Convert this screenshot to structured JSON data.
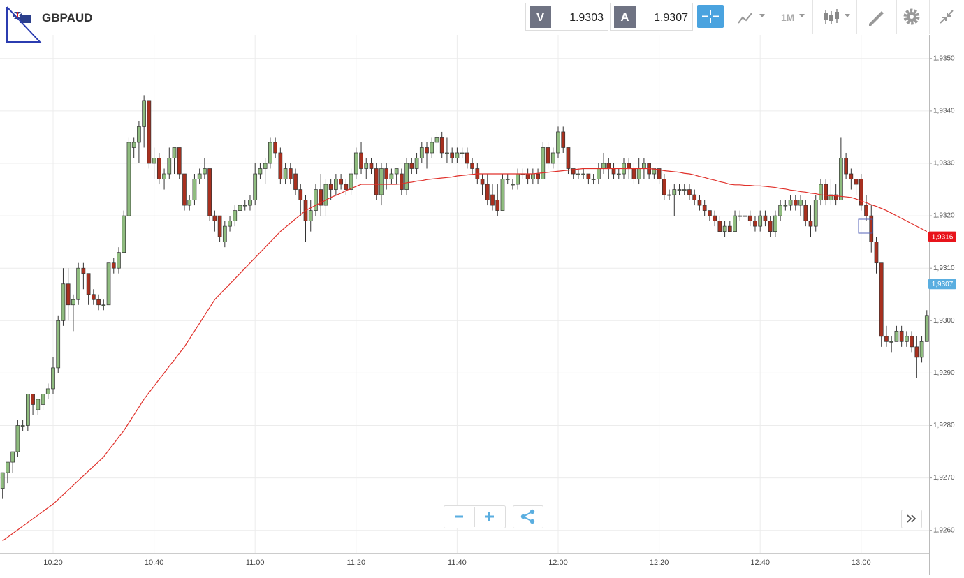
{
  "header": {
    "pair": "GBPAUD",
    "bid_label": "V",
    "bid": "1.9303",
    "ask_label": "A",
    "ask": "1.9307",
    "timeframe": "1M"
  },
  "chart_data": {
    "type": "candlestick",
    "categories": [
      null,
      null,
      null,
      null,
      null,
      null,
      null,
      null,
      null,
      null,
      "10:20",
      null,
      null,
      null,
      null,
      null,
      null,
      null,
      null,
      null,
      null,
      null,
      null,
      null,
      null,
      null,
      null,
      null,
      null,
      null,
      "10:40",
      null,
      null,
      null,
      null,
      null,
      null,
      null,
      null,
      null,
      null,
      null,
      null,
      null,
      null,
      null,
      null,
      null,
      null,
      null,
      "11:00",
      null,
      null,
      null,
      null,
      null,
      null,
      null,
      null,
      null,
      null,
      null,
      null,
      null,
      null,
      null,
      null,
      null,
      null,
      null,
      "11:20",
      null,
      null,
      null,
      null,
      null,
      null,
      null,
      null,
      null,
      null,
      null,
      null,
      null,
      null,
      null,
      null,
      null,
      null,
      null,
      "11:40",
      null,
      null,
      null,
      null,
      null,
      null,
      null,
      null,
      null,
      null,
      null,
      null,
      null,
      null,
      null,
      null,
      null,
      null,
      null,
      "12:00",
      null,
      null,
      null,
      null,
      null,
      null,
      null,
      null,
      null,
      null,
      null,
      null,
      null,
      null,
      null,
      null,
      null,
      null,
      null,
      "12:20",
      null,
      null,
      null,
      null,
      null,
      null,
      null,
      null,
      null,
      null,
      null,
      null,
      null,
      null,
      null,
      null,
      null,
      null,
      null,
      "12:40",
      null,
      null,
      null,
      null,
      null,
      null,
      null,
      null,
      null,
      null,
      null,
      null,
      null,
      null,
      null,
      null,
      null,
      null,
      null,
      "13:00",
      null,
      null,
      null,
      null,
      null,
      null,
      null,
      null,
      null,
      null,
      null,
      null,
      null
    ],
    "open": [
      1.9268,
      1.9271,
      1.9273,
      1.9275,
      1.928,
      1.928,
      1.9286,
      1.9283,
      1.9284,
      1.9286,
      1.9287,
      1.9291,
      1.93,
      1.9307,
      1.9303,
      1.9304,
      1.931,
      1.9309,
      1.9305,
      1.9304,
      1.9303,
      1.9303,
      1.9311,
      1.931,
      1.9313,
      1.932,
      1.9333,
      1.9334,
      1.9337,
      1.9342,
      1.933,
      1.9331,
      1.9327,
      1.9328,
      1.9331,
      1.9333,
      1.9328,
      1.9322,
      1.9323,
      1.9327,
      1.9328,
      1.9329,
      1.932,
      1.932,
      1.9315,
      1.9318,
      1.9319,
      1.9321,
      1.9322,
      1.9322,
      1.9323,
      1.9328,
      1.9329,
      1.933,
      1.9334,
      1.9332,
      1.9327,
      1.9329,
      1.9328,
      1.9325,
      1.9323,
      1.9319,
      1.9321,
      1.9325,
      1.9322,
      1.9326,
      1.9325,
      1.9327,
      1.9326,
      1.9325,
      1.9328,
      1.9332,
      1.9329,
      1.933,
      1.9329,
      1.9324,
      1.9329,
      1.9327,
      1.9328,
      1.9328,
      1.9325,
      1.933,
      1.9329,
      1.9331,
      1.9333,
      1.9332,
      1.9334,
      1.9335,
      1.9332,
      1.9332,
      1.9331,
      1.9332,
      1.9332,
      1.933,
      1.9329,
      1.9327,
      1.9326,
      1.9324,
      1.9323,
      1.9321,
      1.9327,
      1.9326,
      1.9326,
      1.9328,
      1.9328,
      1.9327,
      1.9328,
      1.9327,
      1.9333,
      1.933,
      1.9332,
      1.9336,
      1.9333,
      1.9329,
      1.9328,
      1.9328,
      1.9328,
      1.9327,
      1.9327,
      1.9329,
      1.933,
      1.9329,
      1.9328,
      1.9328,
      1.933,
      1.9329,
      1.9327,
      1.9329,
      1.933,
      1.9328,
      1.9329,
      1.9327,
      1.9324,
      1.9324,
      1.9325,
      1.9325,
      1.9325,
      1.9324,
      1.9323,
      1.9322,
      1.9321,
      1.932,
      1.9319,
      1.9317,
      1.9318,
      1.9317,
      1.932,
      1.932,
      1.932,
      1.9319,
      1.9318,
      1.932,
      1.9319,
      1.9317,
      1.932,
      1.9322,
      1.9322,
      1.9323,
      1.9322,
      1.9322,
      1.9319,
      1.9318,
      1.9323,
      1.9326,
      1.9323,
      1.9324,
      1.9323,
      1.9331,
      1.9328,
      1.9327,
      1.9327,
      1.9322,
      1.932,
      1.9315,
      1.9311,
      1.9297,
      1.9296,
      1.9296,
      1.9298,
      1.9296,
      1.9297,
      1.9295,
      1.9293,
      1.9296
    ],
    "high": [
      1.9271,
      1.9273,
      1.9275,
      1.9281,
      1.9281,
      1.9286,
      1.9286,
      1.9285,
      1.9286,
      1.9288,
      1.9293,
      1.9301,
      1.931,
      1.931,
      1.9305,
      1.9311,
      1.9311,
      1.9309,
      1.9306,
      1.9305,
      1.9304,
      1.9311,
      1.9312,
      1.9314,
      1.9321,
      1.9335,
      1.9335,
      1.9338,
      1.9343,
      1.9342,
      1.9333,
      1.9332,
      1.9329,
      1.9333,
      1.9333,
      1.9333,
      1.9328,
      1.9324,
      1.9328,
      1.9329,
      1.9331,
      1.9329,
      1.9321,
      1.932,
      1.9319,
      1.932,
      1.9322,
      1.9322,
      1.9323,
      1.9324,
      1.933,
      1.933,
      1.9331,
      1.9335,
      1.9335,
      1.9333,
      1.933,
      1.933,
      1.9329,
      1.9326,
      1.9324,
      1.9323,
      1.9326,
      1.9328,
      1.9327,
      1.9327,
      1.9328,
      1.9328,
      1.9327,
      1.9329,
      1.9333,
      1.9334,
      1.9331,
      1.9331,
      1.933,
      1.933,
      1.933,
      1.9329,
      1.9329,
      1.9329,
      1.9331,
      1.9331,
      1.9332,
      1.9334,
      1.9334,
      1.9335,
      1.9336,
      1.9336,
      1.9335,
      1.9333,
      1.9333,
      1.9333,
      1.9333,
      1.9331,
      1.933,
      1.9328,
      1.9328,
      1.9326,
      1.9326,
      1.9328,
      1.9328,
      1.9327,
      1.9329,
      1.9329,
      1.9329,
      1.9329,
      1.9329,
      1.9334,
      1.9334,
      1.9333,
      1.9337,
      1.9337,
      1.9333,
      1.9329,
      1.9329,
      1.9329,
      1.9328,
      1.9328,
      1.933,
      1.9332,
      1.9331,
      1.933,
      1.9329,
      1.9331,
      1.9331,
      1.933,
      1.9331,
      1.9331,
      1.933,
      1.9329,
      1.9329,
      1.9328,
      1.9325,
      1.9326,
      1.9326,
      1.9326,
      1.9326,
      1.9325,
      1.9324,
      1.9323,
      1.9321,
      1.9321,
      1.932,
      1.9319,
      1.9319,
      1.9321,
      1.9321,
      1.9321,
      1.9321,
      1.932,
      1.9321,
      1.9321,
      1.932,
      1.9321,
      1.9323,
      1.9323,
      1.9324,
      1.9324,
      1.9324,
      1.9323,
      1.9322,
      1.9324,
      1.9327,
      1.9327,
      1.9327,
      1.9326,
      1.9335,
      1.9332,
      1.9329,
      1.9327,
      1.9328,
      1.9324,
      1.9322,
      1.9316,
      1.9311,
      1.9299,
      1.9297,
      1.9299,
      1.9299,
      1.9298,
      1.9298,
      1.9297,
      1.9297,
      1.9302
    ],
    "low": [
      1.9266,
      1.9269,
      1.9271,
      1.9274,
      1.9279,
      1.9279,
      1.9282,
      1.9282,
      1.9283,
      1.9285,
      1.9286,
      1.929,
      1.9299,
      1.93,
      1.9298,
      1.9303,
      1.9306,
      1.9303,
      1.9303,
      1.9302,
      1.9302,
      1.9303,
      1.9309,
      1.9309,
      1.9313,
      1.932,
      1.9331,
      1.933,
      1.9333,
      1.9329,
      1.9327,
      1.9326,
      1.9325,
      1.9327,
      1.9328,
      1.9327,
      1.9321,
      1.9321,
      1.9322,
      1.9326,
      1.9327,
      1.9319,
      1.9317,
      1.9315,
      1.9314,
      1.9317,
      1.9318,
      1.932,
      1.9321,
      1.9321,
      1.9322,
      1.9327,
      1.9326,
      1.9329,
      1.9331,
      1.9326,
      1.9326,
      1.9326,
      1.9324,
      1.932,
      1.9315,
      1.9317,
      1.932,
      1.932,
      1.932,
      1.9323,
      1.9324,
      1.9325,
      1.9324,
      1.9324,
      1.9327,
      1.9328,
      1.9327,
      1.9328,
      1.9323,
      1.9322,
      1.9325,
      1.9326,
      1.9326,
      1.9324,
      1.9324,
      1.9328,
      1.9328,
      1.933,
      1.9329,
      1.9331,
      1.9332,
      1.9331,
      1.933,
      1.933,
      1.933,
      1.9331,
      1.9329,
      1.9328,
      1.9326,
      1.9324,
      1.9322,
      1.9321,
      1.932,
      1.9321,
      1.9326,
      1.9325,
      1.9325,
      1.9327,
      1.9326,
      1.9326,
      1.9326,
      1.9327,
      1.9329,
      1.9329,
      1.9331,
      1.9332,
      1.9328,
      1.9327,
      1.9327,
      1.9327,
      1.9326,
      1.9326,
      1.9326,
      1.9328,
      1.9327,
      1.9327,
      1.9327,
      1.9327,
      1.9327,
      1.9326,
      1.9326,
      1.9327,
      1.9327,
      1.9327,
      1.9326,
      1.9323,
      1.9323,
      1.932,
      1.9324,
      1.9324,
      1.9323,
      1.9322,
      1.9321,
      1.932,
      1.9319,
      1.9318,
      1.9317,
      1.9316,
      1.9317,
      1.9317,
      1.9319,
      1.9318,
      1.9318,
      1.9317,
      1.9317,
      1.9318,
      1.9316,
      1.9316,
      1.9319,
      1.9321,
      1.9321,
      1.9321,
      1.932,
      1.9318,
      1.9316,
      1.9317,
      1.9322,
      1.9322,
      1.9322,
      1.9322,
      1.9323,
      1.9327,
      1.9325,
      1.9324,
      1.9321,
      1.9319,
      1.9313,
      1.9309,
      1.9295,
      1.9295,
      1.9294,
      1.9296,
      1.9295,
      1.9295,
      1.9294,
      1.9289,
      1.9292,
      1.9296
    ],
    "close": [
      1.9271,
      1.9273,
      1.9275,
      1.928,
      1.928,
      1.9286,
      1.9284,
      1.9285,
      1.9286,
      1.9287,
      1.9291,
      1.93,
      1.9307,
      1.9303,
      1.9304,
      1.931,
      1.9309,
      1.9305,
      1.9304,
      1.9303,
      1.9303,
      1.9311,
      1.931,
      1.9313,
      1.932,
      1.9334,
      1.9334,
      1.9337,
      1.9342,
      1.933,
      1.9331,
      1.9327,
      1.9328,
      1.9331,
      1.9333,
      1.9328,
      1.9322,
      1.9323,
      1.9327,
      1.9328,
      1.9329,
      1.932,
      1.9319,
      1.9316,
      1.9318,
      1.9319,
      1.9321,
      1.9322,
      1.9322,
      1.9323,
      1.9328,
      1.9329,
      1.933,
      1.9334,
      1.9332,
      1.9327,
      1.9329,
      1.9327,
      1.9325,
      1.9323,
      1.9319,
      1.9321,
      1.9325,
      1.9322,
      1.9326,
      1.9325,
      1.9327,
      1.9326,
      1.9325,
      1.9328,
      1.9332,
      1.9329,
      1.933,
      1.9329,
      1.9324,
      1.9329,
      1.9327,
      1.9328,
      1.9329,
      1.9325,
      1.933,
      1.9329,
      1.9331,
      1.9333,
      1.9332,
      1.9334,
      1.9335,
      1.9332,
      1.9332,
      1.9331,
      1.9332,
      1.9332,
      1.933,
      1.9329,
      1.9327,
      1.9326,
      1.9323,
      1.9322,
      1.9321,
      1.9327,
      1.9327,
      1.9326,
      1.9328,
      1.9328,
      1.9327,
      1.9328,
      1.9327,
      1.9333,
      1.933,
      1.9332,
      1.9336,
      1.9333,
      1.9329,
      1.9328,
      1.9328,
      1.9328,
      1.9327,
      1.9327,
      1.9329,
      1.933,
      1.9329,
      1.9328,
      1.9328,
      1.933,
      1.9329,
      1.9327,
      1.9329,
      1.933,
      1.9328,
      1.9329,
      1.9327,
      1.9324,
      1.9324,
      1.9325,
      1.9325,
      1.9325,
      1.9324,
      1.9323,
      1.9322,
      1.9321,
      1.932,
      1.9319,
      1.9317,
      1.9318,
      1.9317,
      1.932,
      1.932,
      1.932,
      1.9319,
      1.9318,
      1.932,
      1.9319,
      1.9317,
      1.932,
      1.9322,
      1.9322,
      1.9323,
      1.9322,
      1.9323,
      1.9319,
      1.9318,
      1.9323,
      1.9326,
      1.9323,
      1.9324,
      1.9323,
      1.9331,
      1.9328,
      1.9327,
      1.9326,
      1.9322,
      1.932,
      1.9315,
      1.9311,
      1.9297,
      1.9296,
      1.9296,
      1.9298,
      1.9296,
      1.9297,
      1.9295,
      1.9293,
      1.9296,
      1.9301
    ],
    "ma": {
      "color": "#e0302a",
      "values": [
        1.9258,
        1.92587,
        1.92594,
        1.92601,
        1.92608,
        1.92615,
        1.92622,
        1.92629,
        1.92636,
        1.92643,
        1.9265,
        1.92659,
        1.92668,
        1.92677,
        1.92686,
        1.92695,
        1.92704,
        1.92713,
        1.92722,
        1.92731,
        1.9274,
        1.92753,
        1.92765,
        1.92778,
        1.9279,
        1.92805,
        1.9282,
        1.92835,
        1.9285,
        1.92863,
        1.92875,
        1.92888,
        1.929,
        1.92913,
        1.92925,
        1.92938,
        1.9295,
        1.92965,
        1.9298,
        1.92995,
        1.9301,
        1.93025,
        1.9304,
        1.9305,
        1.9306,
        1.9307,
        1.9308,
        1.9309,
        1.931,
        1.9311,
        1.9312,
        1.9313,
        1.9314,
        1.9315,
        1.9316,
        1.9317,
        1.93178,
        1.93186,
        1.93194,
        1.93202,
        1.9321,
        1.93215,
        1.9322,
        1.93225,
        1.9323,
        1.93235,
        1.93239,
        1.93243,
        1.93248,
        1.93252,
        1.93256,
        1.9326,
        1.9326,
        1.9326,
        1.9326,
        1.9326,
        1.9326,
        1.9326,
        1.9326,
        1.93261,
        1.93263,
        1.93264,
        1.93266,
        1.93267,
        1.93269,
        1.9327,
        1.93271,
        1.93272,
        1.93273,
        1.93274,
        1.93276,
        1.93277,
        1.93278,
        1.93279,
        1.9328,
        1.9328,
        1.9328,
        1.9328,
        1.9328,
        1.9328,
        1.9328,
        1.9328,
        1.9328,
        1.9328,
        1.9328,
        1.9328,
        1.93281,
        1.93282,
        1.93283,
        1.93284,
        1.93285,
        1.93286,
        1.93287,
        1.93288,
        1.93289,
        1.9329,
        1.9329,
        1.9329,
        1.9329,
        1.9329,
        1.9329,
        1.9329,
        1.9329,
        1.9329,
        1.9329,
        1.9329,
        1.9329,
        1.9329,
        1.9329,
        1.93289,
        1.93288,
        1.93286,
        1.93285,
        1.93284,
        1.93283,
        1.93281,
        1.9328,
        1.93278,
        1.93275,
        1.93273,
        1.9327,
        1.93268,
        1.93265,
        1.93263,
        1.9326,
        1.93259,
        1.93259,
        1.93258,
        1.93258,
        1.93257,
        1.93257,
        1.93256,
        1.93255,
        1.93254,
        1.93252,
        1.93251,
        1.93249,
        1.93248,
        1.93246,
        1.93245,
        1.93243,
        1.93242,
        1.9324,
        1.93239,
        1.93238,
        1.93238,
        1.93237,
        1.93236,
        1.93235,
        1.93232,
        1.93228,
        1.93225,
        1.93221,
        1.93218,
        1.93214,
        1.9321,
        1.93205,
        1.932,
        1.93195,
        1.9319,
        1.93185,
        1.9318,
        1.93175,
        1.9317
      ]
    },
    "up_color": "#8fbc7f",
    "down_color": "#a8301f",
    "outline_color": "#333333",
    "ylim": [
      1.92557,
      1.93545
    ],
    "yticks": [
      {
        "value": 1.926,
        "label": "1,9260"
      },
      {
        "value": 1.927,
        "label": "1,9270"
      },
      {
        "value": 1.928,
        "label": "1,9280"
      },
      {
        "value": 1.929,
        "label": "1,9290"
      },
      {
        "value": 1.93,
        "label": "1,9300"
      },
      {
        "value": 1.931,
        "label": "1,9310"
      },
      {
        "value": 1.932,
        "label": "1,9320"
      },
      {
        "value": 1.933,
        "label": "1,9330"
      },
      {
        "value": 1.934,
        "label": "1,9340"
      },
      {
        "value": 1.935,
        "label": "1,9350"
      }
    ],
    "grid": true,
    "price_badges": [
      {
        "value": 1.9316,
        "label": "1,9316",
        "color": "#e8141b"
      },
      {
        "value": 1.9307,
        "label": "1,9307",
        "color": "#5aaee0"
      }
    ]
  }
}
